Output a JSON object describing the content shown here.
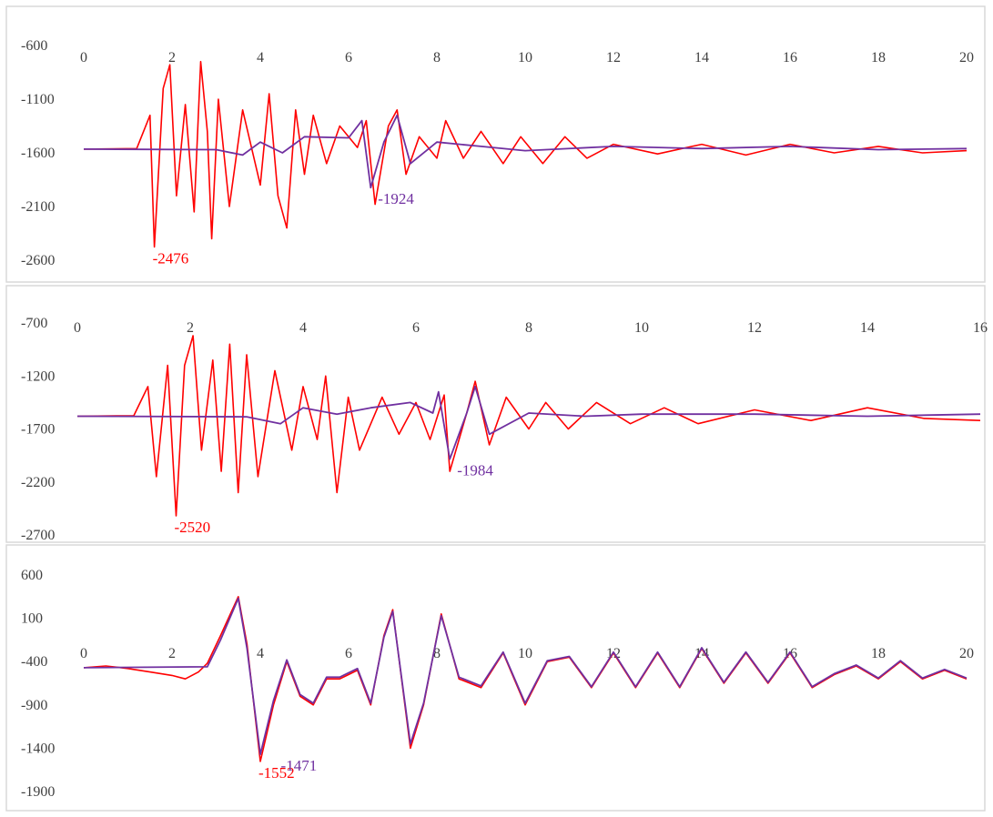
{
  "colors": {
    "red_series": "#ff0000",
    "purple_series": "#7030a0",
    "tick_text": "#404040",
    "frame": "#d9d9d9"
  },
  "chart_data": [
    {
      "type": "line",
      "title": "",
      "xlabel": "",
      "ylabel": "",
      "xlim": [
        0,
        20
      ],
      "ylim": [
        -2600,
        -600
      ],
      "x_ticks": [
        0,
        2,
        4,
        6,
        8,
        10,
        12,
        14,
        16,
        18,
        20
      ],
      "y_ticks": [
        -600,
        -1100,
        -1600,
        -2100,
        -2600
      ],
      "grid": false,
      "legend": "none",
      "baseline": -1565,
      "series": [
        {
          "color": "#ff0000",
          "points": [
            [
              0,
              -1565
            ],
            [
              1.2,
              -1560
            ],
            [
              1.5,
              -1250
            ],
            [
              1.6,
              -2476
            ],
            [
              1.8,
              -1000
            ],
            [
              1.95,
              -780
            ],
            [
              2.1,
              -2000
            ],
            [
              2.3,
              -1150
            ],
            [
              2.5,
              -2150
            ],
            [
              2.65,
              -750
            ],
            [
              2.8,
              -1400
            ],
            [
              2.9,
              -2400
            ],
            [
              3.05,
              -1100
            ],
            [
              3.3,
              -2100
            ],
            [
              3.6,
              -1200
            ],
            [
              4.0,
              -1900
            ],
            [
              4.2,
              -1050
            ],
            [
              4.4,
              -2000
            ],
            [
              4.6,
              -2300
            ],
            [
              4.8,
              -1200
            ],
            [
              5.0,
              -1800
            ],
            [
              5.2,
              -1250
            ],
            [
              5.5,
              -1700
            ],
            [
              5.8,
              -1350
            ],
            [
              6.2,
              -1550
            ],
            [
              6.4,
              -1300
            ],
            [
              6.6,
              -2080
            ],
            [
              6.9,
              -1350
            ],
            [
              7.1,
              -1200
            ],
            [
              7.3,
              -1800
            ],
            [
              7.6,
              -1450
            ],
            [
              8.0,
              -1650
            ],
            [
              8.2,
              -1300
            ],
            [
              8.6,
              -1650
            ],
            [
              9.0,
              -1400
            ],
            [
              9.5,
              -1700
            ],
            [
              9.9,
              -1450
            ],
            [
              10.4,
              -1700
            ],
            [
              10.9,
              -1450
            ],
            [
              11.4,
              -1650
            ],
            [
              12.0,
              -1520
            ],
            [
              13.0,
              -1610
            ],
            [
              14.0,
              -1520
            ],
            [
              15.0,
              -1620
            ],
            [
              16.0,
              -1520
            ],
            [
              17.0,
              -1600
            ],
            [
              18.0,
              -1540
            ],
            [
              19.0,
              -1600
            ],
            [
              20.0,
              -1580
            ]
          ]
        },
        {
          "color": "#7030a0",
          "points": [
            [
              0,
              -1565
            ],
            [
              3.0,
              -1570
            ],
            [
              3.6,
              -1620
            ],
            [
              4.0,
              -1500
            ],
            [
              4.5,
              -1600
            ],
            [
              5.0,
              -1450
            ],
            [
              6.0,
              -1460
            ],
            [
              6.3,
              -1300
            ],
            [
              6.5,
              -1924
            ],
            [
              6.8,
              -1500
            ],
            [
              7.1,
              -1250
            ],
            [
              7.4,
              -1700
            ],
            [
              8.0,
              -1500
            ],
            [
              9.0,
              -1540
            ],
            [
              10.0,
              -1580
            ],
            [
              12.0,
              -1540
            ],
            [
              14.0,
              -1560
            ],
            [
              16.0,
              -1540
            ],
            [
              18.0,
              -1570
            ],
            [
              20.0,
              -1560
            ]
          ]
        }
      ],
      "annotations": [
        {
          "text": "-2476",
          "x": 1.6,
          "y": -2476,
          "color": "#ff0000"
        },
        {
          "text": "-1924",
          "x": 6.5,
          "y": -1924,
          "color": "#7030a0"
        }
      ]
    },
    {
      "type": "line",
      "title": "",
      "xlabel": "",
      "ylabel": "",
      "xlim": [
        0,
        16
      ],
      "ylim": [
        -2700,
        -700
      ],
      "x_ticks": [
        0,
        2,
        4,
        6,
        8,
        10,
        12,
        14,
        16
      ],
      "y_ticks": [
        -700,
        -1200,
        -1700,
        -2200,
        -2700
      ],
      "grid": false,
      "legend": "none",
      "baseline": -1580,
      "series": [
        {
          "color": "#ff0000",
          "points": [
            [
              0,
              -1580
            ],
            [
              1.0,
              -1575
            ],
            [
              1.25,
              -1300
            ],
            [
              1.4,
              -2150
            ],
            [
              1.6,
              -1100
            ],
            [
              1.75,
              -2520
            ],
            [
              1.9,
              -1100
            ],
            [
              2.05,
              -820
            ],
            [
              2.2,
              -1900
            ],
            [
              2.4,
              -1050
            ],
            [
              2.55,
              -2100
            ],
            [
              2.7,
              -900
            ],
            [
              2.85,
              -2300
            ],
            [
              3.0,
              -1000
            ],
            [
              3.2,
              -2150
            ],
            [
              3.5,
              -1150
            ],
            [
              3.8,
              -1900
            ],
            [
              4.0,
              -1300
            ],
            [
              4.25,
              -1800
            ],
            [
              4.4,
              -1200
            ],
            [
              4.6,
              -2300
            ],
            [
              4.8,
              -1400
            ],
            [
              5.0,
              -1900
            ],
            [
              5.4,
              -1400
            ],
            [
              5.7,
              -1750
            ],
            [
              6.0,
              -1450
            ],
            [
              6.25,
              -1800
            ],
            [
              6.5,
              -1380
            ],
            [
              6.6,
              -2100
            ],
            [
              6.9,
              -1550
            ],
            [
              7.05,
              -1250
            ],
            [
              7.3,
              -1850
            ],
            [
              7.6,
              -1400
            ],
            [
              8.0,
              -1700
            ],
            [
              8.3,
              -1450
            ],
            [
              8.7,
              -1700
            ],
            [
              9.2,
              -1450
            ],
            [
              9.8,
              -1650
            ],
            [
              10.4,
              -1500
            ],
            [
              11.0,
              -1650
            ],
            [
              12.0,
              -1520
            ],
            [
              13.0,
              -1620
            ],
            [
              14.0,
              -1500
            ],
            [
              15.0,
              -1600
            ],
            [
              16.0,
              -1620
            ]
          ]
        },
        {
          "color": "#7030a0",
          "points": [
            [
              0,
              -1580
            ],
            [
              3.0,
              -1585
            ],
            [
              3.6,
              -1650
            ],
            [
              4.0,
              -1500
            ],
            [
              4.6,
              -1560
            ],
            [
              5.2,
              -1500
            ],
            [
              5.9,
              -1450
            ],
            [
              6.3,
              -1550
            ],
            [
              6.4,
              -1350
            ],
            [
              6.6,
              -1984
            ],
            [
              6.9,
              -1550
            ],
            [
              7.05,
              -1300
            ],
            [
              7.3,
              -1750
            ],
            [
              8.0,
              -1550
            ],
            [
              9.0,
              -1580
            ],
            [
              10.0,
              -1560
            ],
            [
              12.0,
              -1560
            ],
            [
              14.0,
              -1580
            ],
            [
              16.0,
              -1560
            ]
          ]
        }
      ],
      "annotations": [
        {
          "text": "-2520",
          "x": 1.75,
          "y": -2520,
          "color": "#ff0000"
        },
        {
          "text": "-1984",
          "x": 6.6,
          "y": -1984,
          "color": "#7030a0"
        }
      ]
    },
    {
      "type": "line",
      "title": "",
      "xlabel": "",
      "ylabel": "",
      "xlim": [
        0,
        20
      ],
      "ylim": [
        -1900,
        600
      ],
      "x_ticks": [
        0,
        2,
        4,
        6,
        8,
        10,
        12,
        14,
        16,
        18,
        20
      ],
      "y_ticks": [
        600,
        100,
        -400,
        -900,
        -1400,
        -1900
      ],
      "grid": false,
      "legend": "none",
      "baseline": -440,
      "series": [
        {
          "color": "#ff0000",
          "points": [
            [
              0,
              -470
            ],
            [
              0.5,
              -450
            ],
            [
              1.0,
              -480
            ],
            [
              1.5,
              -520
            ],
            [
              2.0,
              -560
            ],
            [
              2.3,
              -600
            ],
            [
              2.6,
              -520
            ],
            [
              2.8,
              -420
            ],
            [
              3.1,
              -100
            ],
            [
              3.5,
              350
            ],
            [
              3.7,
              -200
            ],
            [
              4.0,
              -1552
            ],
            [
              4.3,
              -900
            ],
            [
              4.6,
              -400
            ],
            [
              4.9,
              -800
            ],
            [
              5.2,
              -900
            ],
            [
              5.5,
              -600
            ],
            [
              5.8,
              -600
            ],
            [
              6.2,
              -500
            ],
            [
              6.5,
              -900
            ],
            [
              6.8,
              -100
            ],
            [
              7.0,
              200
            ],
            [
              7.4,
              -1400
            ],
            [
              7.7,
              -900
            ],
            [
              8.1,
              150
            ],
            [
              8.5,
              -600
            ],
            [
              9.0,
              -700
            ],
            [
              9.5,
              -300
            ],
            [
              10.0,
              -900
            ],
            [
              10.5,
              -400
            ],
            [
              11.0,
              -350
            ],
            [
              11.5,
              -700
            ],
            [
              12.0,
              -300
            ],
            [
              12.5,
              -700
            ],
            [
              13.0,
              -300
            ],
            [
              13.5,
              -700
            ],
            [
              14.0,
              -250
            ],
            [
              14.5,
              -650
            ],
            [
              15.0,
              -300
            ],
            [
              15.5,
              -650
            ],
            [
              16.0,
              -300
            ],
            [
              16.5,
              -700
            ],
            [
              17.0,
              -550
            ],
            [
              17.5,
              -450
            ],
            [
              18.0,
              -600
            ],
            [
              18.5,
              -400
            ],
            [
              19.0,
              -600
            ],
            [
              19.5,
              -500
            ],
            [
              20.0,
              -600
            ]
          ]
        },
        {
          "color": "#7030a0",
          "points": [
            [
              0,
              -470
            ],
            [
              2.8,
              -460
            ],
            [
              3.1,
              -150
            ],
            [
              3.5,
              330
            ],
            [
              3.7,
              -250
            ],
            [
              4.0,
              -1471
            ],
            [
              4.3,
              -850
            ],
            [
              4.6,
              -380
            ],
            [
              4.9,
              -780
            ],
            [
              5.2,
              -880
            ],
            [
              5.5,
              -580
            ],
            [
              5.8,
              -580
            ],
            [
              6.2,
              -480
            ],
            [
              6.5,
              -880
            ],
            [
              6.8,
              -120
            ],
            [
              7.0,
              180
            ],
            [
              7.4,
              -1350
            ],
            [
              7.7,
              -880
            ],
            [
              8.1,
              130
            ],
            [
              8.5,
              -580
            ],
            [
              9.0,
              -680
            ],
            [
              9.5,
              -290
            ],
            [
              10.0,
              -880
            ],
            [
              10.5,
              -390
            ],
            [
              11.0,
              -340
            ],
            [
              11.5,
              -690
            ],
            [
              12.0,
              -290
            ],
            [
              12.5,
              -690
            ],
            [
              13.0,
              -290
            ],
            [
              13.5,
              -690
            ],
            [
              14.0,
              -240
            ],
            [
              14.5,
              -640
            ],
            [
              15.0,
              -290
            ],
            [
              15.5,
              -640
            ],
            [
              16.0,
              -290
            ],
            [
              16.5,
              -690
            ],
            [
              17.0,
              -540
            ],
            [
              17.5,
              -440
            ],
            [
              18.0,
              -590
            ],
            [
              18.5,
              -390
            ],
            [
              19.0,
              -590
            ],
            [
              19.5,
              -490
            ],
            [
              20.0,
              -590
            ]
          ]
        }
      ],
      "annotations": [
        {
          "text": "-1552",
          "x": 4.0,
          "y": -1552,
          "color": "#ff0000"
        },
        {
          "text": "-1471",
          "x": 4.3,
          "y": -1471,
          "color": "#7030a0"
        }
      ]
    }
  ]
}
